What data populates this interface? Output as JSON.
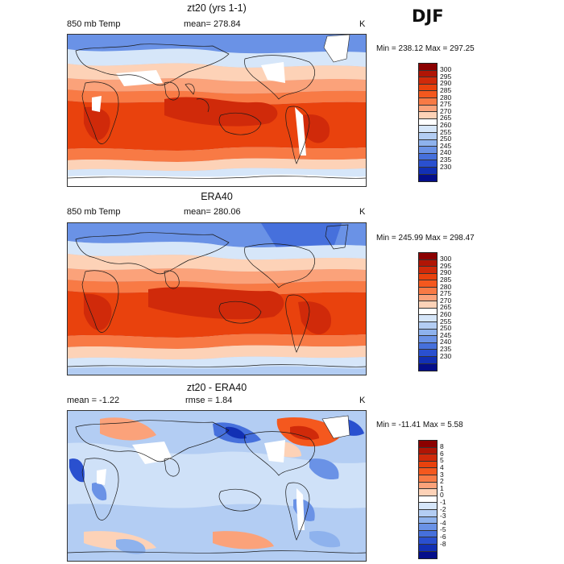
{
  "season": "DJF",
  "palettes": {
    "temp": [
      "#8b0000",
      "#b01505",
      "#d02a0a",
      "#e9420d",
      "#f4581e",
      "#f87a45",
      "#fba27a",
      "#fdd2b7",
      "#ffffff",
      "#d6e6f9",
      "#b3cdf3",
      "#8eb2ed",
      "#6a92e6",
      "#4670dc",
      "#2a50cf",
      "#1230b4",
      "#040e8a"
    ],
    "diff": [
      "#8b0000",
      "#b01505",
      "#d02a0a",
      "#e9420d",
      "#f4581e",
      "#f87a45",
      "#fba27a",
      "#fdd2b7",
      "#ffffff",
      "#d6e6f9",
      "#b3cdf3",
      "#8eb2ed",
      "#6a92e6",
      "#4670dc",
      "#2a50cf",
      "#1230b4",
      "#040e8a"
    ]
  },
  "panels": [
    {
      "title": "zt20 (yrs 1-1)",
      "left_label": "850 mb Temp",
      "center_label": "mean= 278.84",
      "unit": "K",
      "minmax": "Min = 238.12  Max = 297.25",
      "kind": "temp",
      "ticks": [
        "300",
        "295",
        "290",
        "285",
        "280",
        "275",
        "270",
        "265",
        "260",
        "255",
        "250",
        "245",
        "240",
        "235",
        "230"
      ]
    },
    {
      "title": "ERA40",
      "left_label": "850 mb Temp",
      "center_label": "mean= 280.06",
      "unit": "K",
      "minmax": "Min = 245.99  Max = 298.47",
      "kind": "temp",
      "ticks": [
        "300",
        "295",
        "290",
        "285",
        "280",
        "275",
        "270",
        "265",
        "260",
        "255",
        "250",
        "245",
        "240",
        "235",
        "230"
      ]
    },
    {
      "title": "zt20 - ERA40",
      "left_label": "mean =   -1.22",
      "center_label": "rmse =   1.84",
      "unit": "K",
      "minmax": "Min = -11.41  Max =    5.58",
      "kind": "diff",
      "ticks": [
        "8",
        "6",
        "5",
        "4",
        "3",
        "2",
        "1",
        "0",
        "-1",
        "-2",
        "-3",
        "-4",
        "-5",
        "-6",
        "-8"
      ]
    }
  ]
}
